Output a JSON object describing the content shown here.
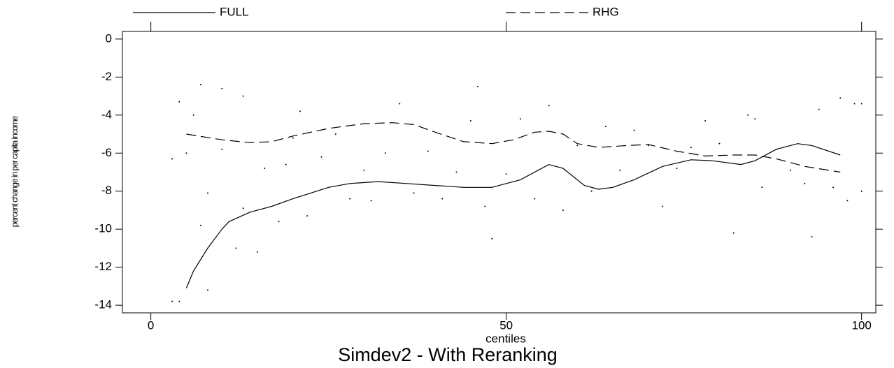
{
  "chart_data": {
    "type": "line",
    "title": "Simdev2 - With Reranking",
    "x_label": "centiles",
    "y_label": "percent change in per capita income",
    "xlim": [
      -4,
      102
    ],
    "ylim": [
      -14.4,
      0.4
    ],
    "xticks": [
      0,
      50,
      100
    ],
    "yticks": [
      0,
      -2,
      -4,
      -6,
      -8,
      -10,
      -12,
      -14
    ],
    "legend": "top",
    "series": [
      {
        "name": "FULL",
        "color": "#000000",
        "linestyle": "solid",
        "x": [
          5,
          6,
          8,
          10,
          11,
          14,
          17,
          20,
          25,
          28,
          32,
          36,
          40,
          44,
          48,
          52,
          56,
          58,
          61,
          63,
          65,
          68,
          72,
          76,
          79,
          83,
          85,
          88,
          91,
          93,
          97
        ],
        "values": [
          -13.1,
          -12.2,
          -11.0,
          -10.0,
          -9.6,
          -9.1,
          -8.8,
          -8.4,
          -7.8,
          -7.6,
          -7.5,
          -7.6,
          -7.7,
          -7.8,
          -7.8,
          -7.4,
          -6.6,
          -6.8,
          -7.7,
          -7.9,
          -7.8,
          -7.4,
          -6.7,
          -6.35,
          -6.4,
          -6.6,
          -6.4,
          -5.8,
          -5.5,
          -5.6,
          -6.1
        ]
      },
      {
        "name": "RHG",
        "color": "#000000",
        "linestyle": "dashed",
        "x": [
          5,
          10,
          14,
          17,
          20,
          25,
          30,
          34,
          37,
          40,
          44,
          48,
          51,
          54,
          56,
          58,
          60,
          63,
          67,
          70,
          74,
          78,
          82,
          85,
          88,
          92,
          97
        ],
        "values": [
          -5.0,
          -5.3,
          -5.45,
          -5.4,
          -5.1,
          -4.7,
          -4.45,
          -4.4,
          -4.5,
          -4.9,
          -5.4,
          -5.5,
          -5.3,
          -4.9,
          -4.85,
          -5.0,
          -5.5,
          -5.7,
          -5.6,
          -5.55,
          -5.9,
          -6.15,
          -6.1,
          -6.1,
          -6.3,
          -6.7,
          -7.0
        ]
      },
      {
        "color": "#000000",
        "marker": "dot",
        "x": [
          3,
          4,
          3,
          4,
          5,
          6,
          7,
          7,
          8,
          8,
          10,
          10,
          12,
          13,
          13,
          15,
          16,
          18,
          19,
          20,
          21,
          22,
          24,
          26,
          28,
          30,
          31,
          33,
          35,
          37,
          39,
          41,
          43,
          45,
          46,
          47,
          48,
          50,
          52,
          54,
          56,
          58,
          60,
          62,
          64,
          66,
          68,
          70,
          72,
          74,
          76,
          78,
          80,
          82,
          84,
          85,
          86,
          88,
          90,
          92,
          93,
          94,
          96,
          97,
          98,
          99,
          100,
          100
        ],
        "values": [
          -6.3,
          -3.3,
          -13.8,
          -13.8,
          -6.0,
          -4.0,
          -2.4,
          -9.8,
          -13.2,
          -8.1,
          -2.6,
          -5.8,
          -11.0,
          -3.0,
          -8.9,
          -11.2,
          -6.8,
          -9.6,
          -6.6,
          -5.2,
          -3.8,
          -9.3,
          -6.2,
          -5.0,
          -8.4,
          -6.9,
          -8.5,
          -6.0,
          -3.4,
          -8.1,
          -5.9,
          -8.4,
          -7.0,
          -4.3,
          -2.5,
          -8.8,
          -10.5,
          -7.1,
          -4.2,
          -8.4,
          -3.5,
          -9.0,
          -5.6,
          -8.0,
          -4.6,
          -6.9,
          -4.8,
          -5.6,
          -8.8,
          -6.8,
          -5.7,
          -4.3,
          -5.5,
          -10.2,
          -4.0,
          -4.2,
          -7.8,
          -5.8,
          -6.9,
          -7.6,
          -10.4,
          -3.7,
          -7.8,
          -3.1,
          -8.5,
          -3.4,
          -3.4,
          -8.0
        ]
      }
    ]
  }
}
